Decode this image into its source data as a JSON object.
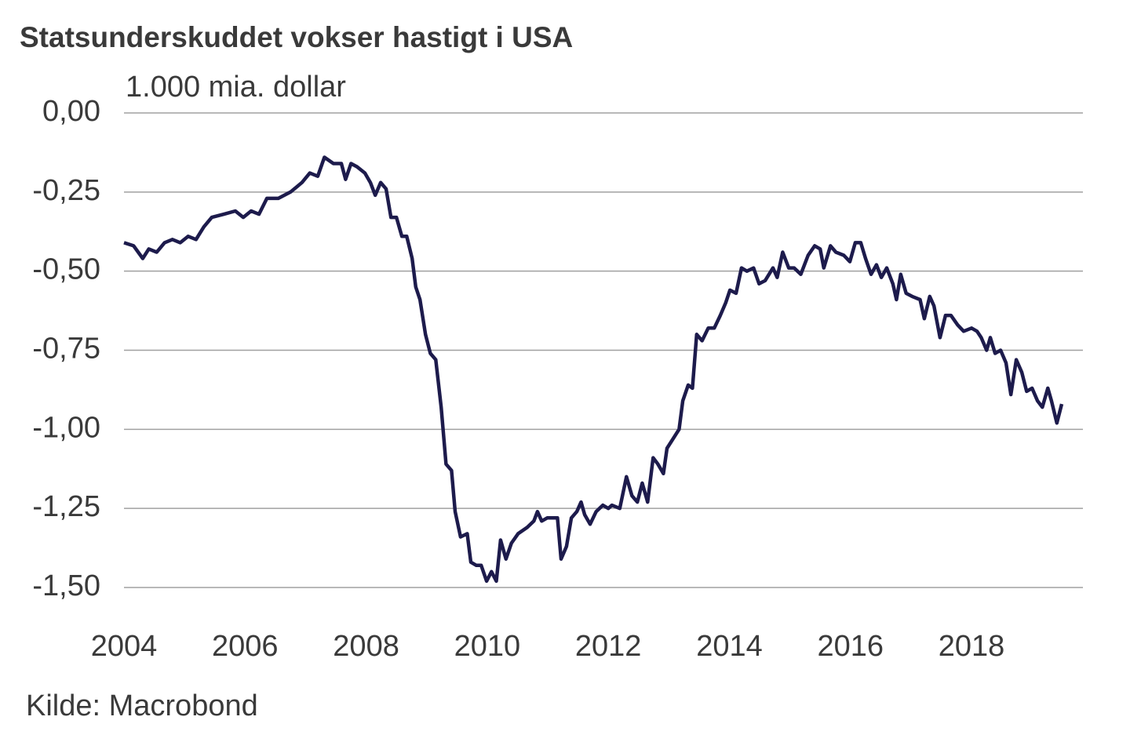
{
  "chart_data": {
    "type": "line",
    "title": "Statsunderskuddet vokser hastigt i USA",
    "y_axis_label": "1.000 mia. dollar",
    "source": "Kilde: Macrobond",
    "color": "#1d1b4c",
    "grid": true,
    "xlim": [
      2004,
      2019.84
    ],
    "xticks": [
      2004,
      2006,
      2008,
      2010,
      2012,
      2014,
      2016,
      2018
    ],
    "ylim": [
      -1.5,
      0
    ],
    "yticks": [
      {
        "value": 0,
        "label": "0,00"
      },
      {
        "value": -0.25,
        "label": "-0,25"
      },
      {
        "value": -0.5,
        "label": "-0,50"
      },
      {
        "value": -0.75,
        "label": "-0,75"
      },
      {
        "value": -1,
        "label": "-1,00"
      },
      {
        "value": -1.25,
        "label": "-1,25"
      },
      {
        "value": -1.5,
        "label": "-1,50"
      }
    ],
    "x": [
      2004.0,
      2004.16,
      2004.31,
      2004.41,
      2004.54,
      2004.67,
      2004.8,
      2004.93,
      2005.06,
      2005.19,
      2005.32,
      2005.45,
      2005.65,
      2005.84,
      2005.97,
      2006.1,
      2006.23,
      2006.36,
      2006.55,
      2006.75,
      2006.94,
      2007.07,
      2007.2,
      2007.31,
      2007.46,
      2007.59,
      2007.66,
      2007.75,
      2007.85,
      2007.98,
      2008.07,
      2008.15,
      2008.24,
      2008.33,
      2008.41,
      2008.5,
      2008.59,
      2008.67,
      2008.76,
      2008.82,
      2008.89,
      2008.98,
      2009.06,
      2009.15,
      2009.24,
      2009.32,
      2009.41,
      2009.47,
      2009.56,
      2009.67,
      2009.73,
      2009.82,
      2009.9,
      2009.99,
      2010.07,
      2010.15,
      2010.22,
      2010.31,
      2010.4,
      2010.51,
      2010.66,
      2010.77,
      2010.83,
      2010.9,
      2010.99,
      2011.09,
      2011.16,
      2011.22,
      2011.31,
      2011.39,
      2011.48,
      2011.55,
      2011.61,
      2011.7,
      2011.8,
      2011.91,
      2012.0,
      2012.06,
      2012.19,
      2012.3,
      2012.39,
      2012.48,
      2012.56,
      2012.65,
      2012.74,
      2012.82,
      2012.91,
      2012.97,
      2013.07,
      2013.17,
      2013.23,
      2013.32,
      2013.39,
      2013.46,
      2013.55,
      2013.65,
      2013.75,
      2013.85,
      2013.94,
      2014.01,
      2014.11,
      2014.2,
      2014.29,
      2014.4,
      2014.49,
      2014.59,
      2014.72,
      2014.79,
      2014.88,
      2014.98,
      2015.07,
      2015.18,
      2015.3,
      2015.41,
      2015.5,
      2015.56,
      2015.67,
      2015.76,
      2015.89,
      2015.99,
      2016.08,
      2016.17,
      2016.25,
      2016.34,
      2016.43,
      2016.51,
      2016.6,
      2016.7,
      2016.76,
      2016.83,
      2016.92,
      2017.02,
      2017.15,
      2017.22,
      2017.31,
      2017.38,
      2017.48,
      2017.57,
      2017.66,
      2017.77,
      2017.87,
      2018.0,
      2018.09,
      2018.16,
      2018.25,
      2018.31,
      2018.39,
      2018.48,
      2018.57,
      2018.65,
      2018.74,
      2018.83,
      2018.91,
      2019.0,
      2019.09,
      2019.17,
      2019.26,
      2019.32,
      2019.41,
      2019.49
    ],
    "values": [
      -0.41,
      -0.42,
      -0.46,
      -0.43,
      -0.44,
      -0.41,
      -0.4,
      -0.41,
      -0.39,
      -0.4,
      -0.36,
      -0.33,
      -0.32,
      -0.31,
      -0.33,
      -0.31,
      -0.32,
      -0.27,
      -0.27,
      -0.25,
      -0.22,
      -0.19,
      -0.2,
      -0.14,
      -0.16,
      -0.16,
      -0.21,
      -0.16,
      -0.17,
      -0.19,
      -0.22,
      -0.26,
      -0.22,
      -0.24,
      -0.33,
      -0.33,
      -0.39,
      -0.39,
      -0.46,
      -0.55,
      -0.59,
      -0.7,
      -0.76,
      -0.78,
      -0.93,
      -1.11,
      -1.13,
      -1.26,
      -1.34,
      -1.33,
      -1.42,
      -1.43,
      -1.43,
      -1.48,
      -1.45,
      -1.48,
      -1.35,
      -1.41,
      -1.36,
      -1.33,
      -1.31,
      -1.29,
      -1.26,
      -1.29,
      -1.28,
      -1.28,
      -1.28,
      -1.41,
      -1.37,
      -1.28,
      -1.26,
      -1.23,
      -1.27,
      -1.3,
      -1.26,
      -1.24,
      -1.25,
      -1.24,
      -1.25,
      -1.15,
      -1.21,
      -1.23,
      -1.17,
      -1.23,
      -1.09,
      -1.11,
      -1.14,
      -1.06,
      -1.03,
      -1.0,
      -0.91,
      -0.86,
      -0.87,
      -0.7,
      -0.72,
      -0.68,
      -0.68,
      -0.64,
      -0.6,
      -0.56,
      -0.57,
      -0.49,
      -0.5,
      -0.49,
      -0.54,
      -0.53,
      -0.49,
      -0.52,
      -0.44,
      -0.49,
      -0.49,
      -0.51,
      -0.45,
      -0.42,
      -0.43,
      -0.49,
      -0.42,
      -0.44,
      -0.45,
      -0.47,
      -0.41,
      -0.41,
      -0.46,
      -0.51,
      -0.48,
      -0.52,
      -0.49,
      -0.54,
      -0.59,
      -0.51,
      -0.57,
      -0.58,
      -0.59,
      -0.65,
      -0.58,
      -0.61,
      -0.71,
      -0.64,
      -0.64,
      -0.67,
      -0.69,
      -0.68,
      -0.69,
      -0.71,
      -0.75,
      -0.71,
      -0.76,
      -0.75,
      -0.79,
      -0.89,
      -0.78,
      -0.82,
      -0.88,
      -0.87,
      -0.91,
      -0.93,
      -0.87,
      -0.91,
      -0.98,
      -0.92
    ]
  }
}
